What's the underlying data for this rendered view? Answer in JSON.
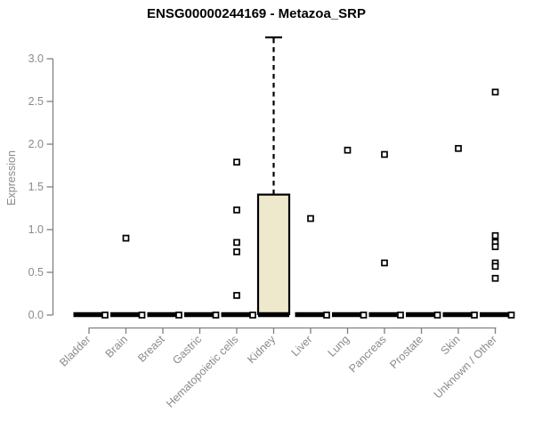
{
  "chart_data": {
    "type": "boxplot",
    "title": "ENSG00000244169 - Metazoa_SRP",
    "ylabel": "Expression",
    "xlabel": "",
    "ylim": [
      0.0,
      3.3
    ],
    "ytick_labels": [
      "0.0",
      "0.5",
      "1.0",
      "1.5",
      "2.0",
      "2.5",
      "3.0"
    ],
    "grid": false,
    "legend": "none",
    "categories": [
      "Bladder",
      "Brain",
      "Breast",
      "Gastric",
      "Hematopoietic cells",
      "Kidney",
      "Liver",
      "Lung",
      "Pancreas",
      "Prostate",
      "Skin",
      "Unknown / Other"
    ],
    "boxes": [
      {
        "name": "Bladder",
        "median": 0,
        "q1": 0,
        "q3": 0,
        "whisker_low": 0,
        "whisker_high": 0,
        "outliers": [
          0
        ]
      },
      {
        "name": "Brain",
        "median": 0,
        "q1": 0,
        "q3": 0,
        "whisker_low": 0,
        "whisker_high": 0,
        "outliers": [
          0.9,
          0
        ]
      },
      {
        "name": "Breast",
        "median": 0,
        "q1": 0,
        "q3": 0,
        "whisker_low": 0,
        "whisker_high": 0,
        "outliers": [
          0
        ]
      },
      {
        "name": "Gastric",
        "median": 0,
        "q1": 0,
        "q3": 0,
        "whisker_low": 0,
        "whisker_high": 0,
        "outliers": [
          0
        ]
      },
      {
        "name": "Hematopoietic cells",
        "median": 0,
        "q1": 0,
        "q3": 0,
        "whisker_low": 0,
        "whisker_high": 0,
        "outliers": [
          1.79,
          1.23,
          0.85,
          0.74,
          0.23,
          0
        ]
      },
      {
        "name": "Kidney",
        "median": 0,
        "q1": 0,
        "q3": 1.41,
        "whisker_low": 0,
        "whisker_high": 3.25,
        "outliers": []
      },
      {
        "name": "Liver",
        "median": 0,
        "q1": 0,
        "q3": 0,
        "whisker_low": 0,
        "whisker_high": 0,
        "outliers": [
          1.13,
          0
        ]
      },
      {
        "name": "Lung",
        "median": 0,
        "q1": 0,
        "q3": 0,
        "whisker_low": 0,
        "whisker_high": 0,
        "outliers": [
          1.93,
          0
        ]
      },
      {
        "name": "Pancreas",
        "median": 0,
        "q1": 0,
        "q3": 0,
        "whisker_low": 0,
        "whisker_high": 0,
        "outliers": [
          1.88,
          0.61,
          0
        ]
      },
      {
        "name": "Prostate",
        "median": 0,
        "q1": 0,
        "q3": 0,
        "whisker_low": 0,
        "whisker_high": 0,
        "outliers": [
          0
        ]
      },
      {
        "name": "Skin",
        "median": 0,
        "q1": 0,
        "q3": 0,
        "whisker_low": 0,
        "whisker_high": 0,
        "outliers": [
          1.95,
          0
        ]
      },
      {
        "name": "Unknown / Other",
        "median": 0,
        "q1": 0,
        "q3": 0,
        "whisker_low": 0,
        "whisker_high": 0,
        "outliers": [
          2.61,
          0.93,
          0.85,
          0.8,
          0.61,
          0.57,
          0.43,
          0
        ]
      }
    ],
    "colors": {
      "box_fill": "#EEE8CD",
      "box_border": "#000000",
      "median_line": "#000000",
      "whisker": "#000000",
      "outlier_fill": "#ffffff",
      "outlier_border": "#000000",
      "axis_line": "#808080",
      "tick_text": "#8a8a8a",
      "title_text": "#000000",
      "background": "#ffffff"
    }
  }
}
